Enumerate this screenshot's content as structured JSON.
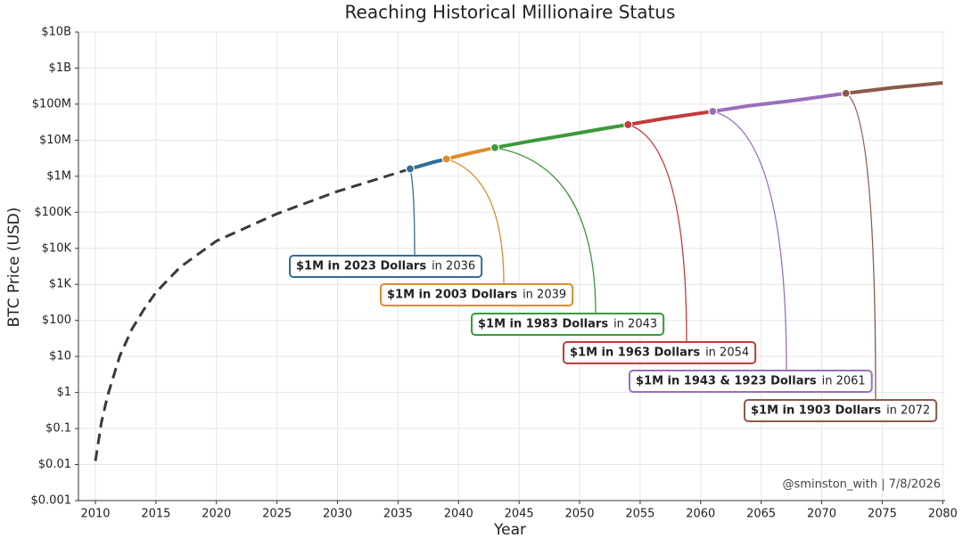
{
  "chart_data": {
    "type": "line",
    "title": "Reaching Historical Millionaire Status",
    "x_label": "Year",
    "y_label": "BTC Price (USD)",
    "log_y": true,
    "grid": true,
    "xlim": [
      2008.6,
      2080.2
    ],
    "ylim": [
      0.001,
      10000000000
    ],
    "xticks": [
      2010,
      2015,
      2020,
      2025,
      2030,
      2035,
      2040,
      2045,
      2050,
      2055,
      2060,
      2065,
      2070,
      2075,
      2080
    ],
    "yticks": [
      {
        "value": 0.001,
        "label": "$0.001"
      },
      {
        "value": 0.01,
        "label": "$0.01"
      },
      {
        "value": 0.1,
        "label": "$0.1"
      },
      {
        "value": 1,
        "label": "$1"
      },
      {
        "value": 10,
        "label": "$10"
      },
      {
        "value": 100,
        "label": "$100"
      },
      {
        "value": 1000,
        "label": "$1K"
      },
      {
        "value": 10000,
        "label": "$10K"
      },
      {
        "value": 100000,
        "label": "$100K"
      },
      {
        "value": 1000000,
        "label": "$1M"
      },
      {
        "value": 10000000,
        "label": "$10M"
      },
      {
        "value": 100000000,
        "label": "$100M"
      },
      {
        "value": 1000000000,
        "label": "$1B"
      },
      {
        "value": 10000000000,
        "label": "$10B"
      }
    ],
    "projection": {
      "color": "#3a3a3a",
      "x": [
        2010,
        2010.5,
        2011,
        2012,
        2013,
        2014,
        2015,
        2017,
        2020,
        2025,
        2030,
        2036
      ],
      "values": [
        0.0126,
        0.15,
        0.8,
        10,
        56,
        200,
        600,
        3000,
        16000,
        91000,
        380000,
        1600000
      ]
    },
    "segments": [
      {
        "color": "#2f6f96",
        "x": [
          2036,
          2037,
          2038,
          2039
        ],
        "values": [
          1600000,
          2000000,
          2500000,
          3000000
        ]
      },
      {
        "color": "#e08a2c",
        "x": [
          2039,
          2041,
          2043
        ],
        "values": [
          3000000,
          4400000,
          6200000
        ]
      },
      {
        "color": "#3a9a3a",
        "x": [
          2043,
          2046,
          2049,
          2052,
          2054
        ],
        "values": [
          6200000,
          9500000,
          14000000,
          21000000,
          27000000
        ]
      },
      {
        "color": "#c23a3a",
        "x": [
          2054,
          2057,
          2061
        ],
        "values": [
          27000000,
          40000000,
          63000000
        ]
      },
      {
        "color": "#9a6fba",
        "x": [
          2061,
          2064,
          2068,
          2072
        ],
        "values": [
          63000000,
          90000000,
          130000000,
          200000000
        ]
      },
      {
        "color": "#8a5a4a",
        "x": [
          2072,
          2076,
          2080
        ],
        "values": [
          200000000,
          290000000,
          390000000
        ]
      }
    ],
    "annotations": [
      {
        "label": "$1M in 2023 Dollars",
        "year_text": "in 2036",
        "x": 2036,
        "y": 1600000,
        "color": "#2f6f96"
      },
      {
        "label": "$1M in 2003 Dollars",
        "year_text": "in 2039",
        "x": 2039,
        "y": 3000000,
        "color": "#e08a2c"
      },
      {
        "label": "$1M in 1983 Dollars",
        "year_text": "in 2043",
        "x": 2043,
        "y": 6200000,
        "color": "#3a9a3a"
      },
      {
        "label": "$1M in 1963 Dollars",
        "year_text": "in 2054",
        "x": 2054,
        "y": 27000000,
        "color": "#c23a3a"
      },
      {
        "label": "$1M in 1943 & 1923 Dollars",
        "year_text": "in 2061",
        "x": 2061,
        "y": 63000000,
        "color": "#9a6fba"
      },
      {
        "label": "$1M in 1903 Dollars",
        "year_text": "in 2072",
        "x": 2072,
        "y": 200000000,
        "color": "#8a5a4a"
      }
    ],
    "credit": "@sminston_with  |  7/8/2026"
  }
}
